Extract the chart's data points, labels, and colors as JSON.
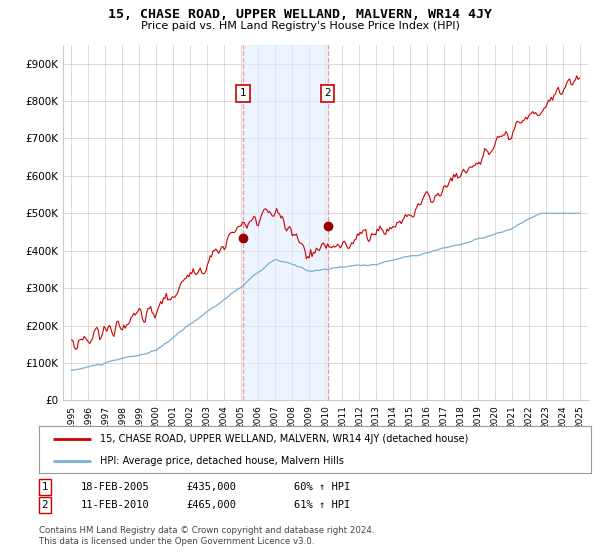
{
  "title": "15, CHASE ROAD, UPPER WELLAND, MALVERN, WR14 4JY",
  "subtitle": "Price paid vs. HM Land Registry's House Price Index (HPI)",
  "ylabel_ticks": [
    "£0",
    "£100K",
    "£200K",
    "£300K",
    "£400K",
    "£500K",
    "£600K",
    "£700K",
    "£800K",
    "£900K"
  ],
  "ytick_values": [
    0,
    100000,
    200000,
    300000,
    400000,
    500000,
    600000,
    700000,
    800000,
    900000
  ],
  "ylim": [
    0,
    950000
  ],
  "xlim_start": 1994.5,
  "xlim_end": 2025.5,
  "sale1_x": 2005.12,
  "sale1_y": 435000,
  "sale1_label": "1",
  "sale1_date": "18-FEB-2005",
  "sale1_price": "£435,000",
  "sale1_hpi": "60% ↑ HPI",
  "sale2_x": 2010.12,
  "sale2_y": 465000,
  "sale2_label": "2",
  "sale2_date": "11-FEB-2010",
  "sale2_price": "£465,000",
  "sale2_hpi": "61% ↑ HPI",
  "hpi_line_color": "#7bafd4",
  "price_line_color": "#cc0000",
  "sale_marker_color": "#990000",
  "shading_color": "#ddeeff",
  "shading_alpha": 0.55,
  "grid_color": "#cccccc",
  "background_color": "#ffffff",
  "legend_line1": "15, CHASE ROAD, UPPER WELLAND, MALVERN, WR14 4JY (detached house)",
  "legend_line2": "HPI: Average price, detached house, Malvern Hills",
  "footnote": "Contains HM Land Registry data © Crown copyright and database right 2024.\nThis data is licensed under the Open Government Licence v3.0."
}
